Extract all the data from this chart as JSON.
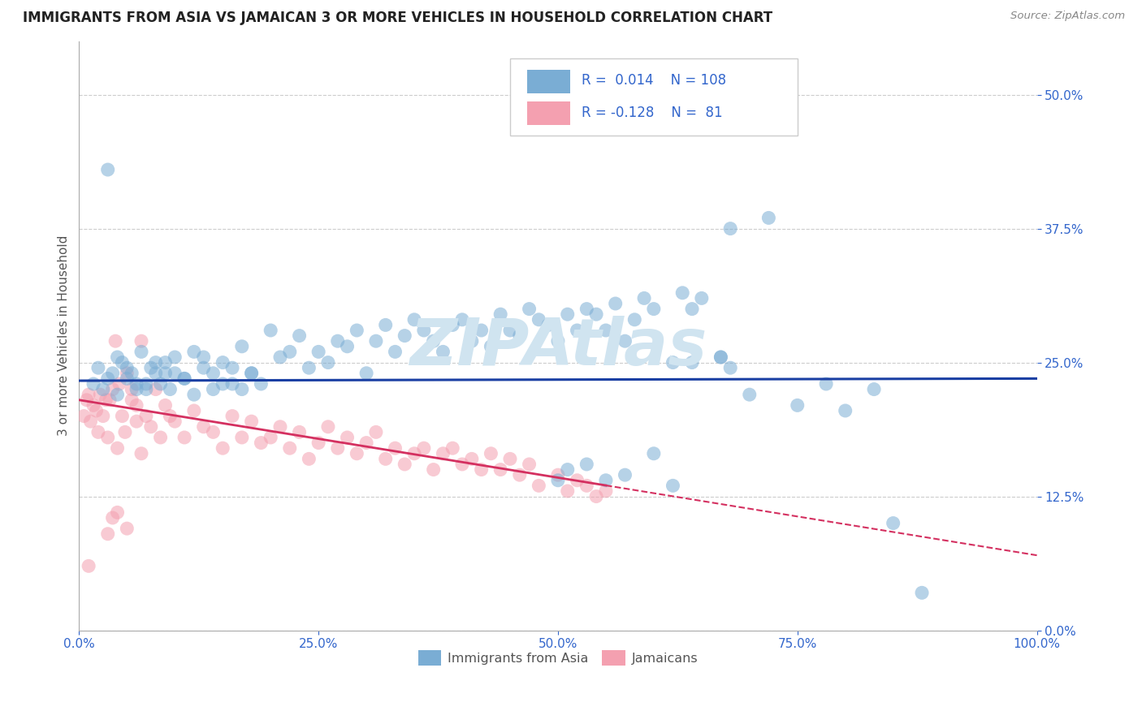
{
  "title": "IMMIGRANTS FROM ASIA VS JAMAICAN 3 OR MORE VEHICLES IN HOUSEHOLD CORRELATION CHART",
  "source_text": "Source: ZipAtlas.com",
  "ylabel": "3 or more Vehicles in Household",
  "legend_labels": [
    "Immigrants from Asia",
    "Jamaicans"
  ],
  "r_values": [
    0.014,
    -0.128
  ],
  "n_values": [
    108,
    81
  ],
  "xlim": [
    0.0,
    100.0
  ],
  "ylim": [
    0.0,
    55.0
  ],
  "x_ticks": [
    0.0,
    25.0,
    50.0,
    75.0,
    100.0
  ],
  "x_tick_labels": [
    "0.0%",
    "25.0%",
    "50.0%",
    "75.0%",
    "100.0%"
  ],
  "y_ticks": [
    0.0,
    12.5,
    25.0,
    37.5,
    50.0
  ],
  "y_tick_labels": [
    "0.0%",
    "12.5%",
    "25.0%",
    "37.5%",
    "50.0%"
  ],
  "grid_color": "#cccccc",
  "background_color": "#ffffff",
  "blue_color": "#7aadd4",
  "pink_color": "#f4a0b0",
  "blue_line_color": "#1a3fa3",
  "pink_line_color": "#d43060",
  "title_color": "#222222",
  "axis_label_color": "#555555",
  "tick_color": "#3366cc",
  "watermark_color": "#d0e4f0",
  "blue_scatter_x": [
    1.5,
    2.0,
    2.5,
    3.0,
    3.5,
    4.0,
    4.5,
    5.0,
    5.5,
    6.0,
    6.5,
    7.0,
    7.5,
    8.0,
    8.5,
    9.0,
    9.5,
    10.0,
    11.0,
    12.0,
    13.0,
    14.0,
    15.0,
    16.0,
    17.0,
    18.0,
    19.0,
    20.0,
    21.0,
    22.0,
    23.0,
    24.0,
    25.0,
    26.0,
    27.0,
    28.0,
    29.0,
    30.0,
    31.0,
    32.0,
    33.0,
    34.0,
    35.0,
    36.0,
    37.0,
    38.0,
    39.0,
    40.0,
    41.0,
    42.0,
    43.0,
    44.0,
    45.0,
    46.0,
    47.0,
    48.0,
    49.0,
    50.0,
    51.0,
    52.0,
    53.0,
    54.0,
    55.0,
    56.0,
    57.0,
    58.0,
    59.0,
    60.0,
    62.0,
    63.0,
    64.0,
    65.0,
    67.0,
    68.0,
    70.0,
    72.0,
    75.0,
    78.0,
    80.0,
    83.0,
    85.0,
    88.0,
    3.0,
    4.0,
    5.0,
    6.0,
    7.0,
    8.0,
    9.0,
    10.0,
    11.0,
    12.0,
    13.0,
    14.0,
    15.0,
    16.0,
    17.0,
    18.0,
    50.0,
    51.0,
    53.0,
    55.0,
    57.0,
    60.0,
    62.0,
    64.0,
    67.0,
    68.0
  ],
  "blue_scatter_y": [
    23.0,
    24.5,
    22.5,
    23.5,
    24.0,
    22.0,
    25.0,
    23.5,
    24.0,
    22.5,
    26.0,
    23.0,
    24.5,
    25.0,
    23.0,
    24.0,
    22.5,
    25.5,
    23.5,
    26.0,
    24.5,
    22.5,
    25.0,
    23.0,
    26.5,
    24.0,
    23.0,
    28.0,
    25.5,
    26.0,
    27.5,
    24.5,
    26.0,
    25.0,
    27.0,
    26.5,
    28.0,
    24.0,
    27.0,
    28.5,
    26.0,
    27.5,
    29.0,
    28.0,
    27.0,
    26.0,
    28.5,
    29.0,
    27.0,
    28.0,
    26.5,
    29.5,
    28.0,
    27.5,
    30.0,
    29.0,
    28.5,
    27.0,
    29.5,
    28.0,
    30.0,
    29.5,
    28.0,
    30.5,
    27.0,
    29.0,
    31.0,
    30.0,
    25.0,
    31.5,
    30.0,
    31.0,
    25.5,
    37.5,
    22.0,
    38.5,
    21.0,
    23.0,
    20.5,
    22.5,
    10.0,
    3.5,
    43.0,
    25.5,
    24.5,
    23.0,
    22.5,
    24.0,
    25.0,
    24.0,
    23.5,
    22.0,
    25.5,
    24.0,
    23.0,
    24.5,
    22.5,
    24.0,
    14.0,
    15.0,
    15.5,
    14.0,
    14.5,
    16.5,
    13.5,
    25.0,
    25.5,
    24.5
  ],
  "pink_scatter_x": [
    0.5,
    0.8,
    1.0,
    1.2,
    1.5,
    1.8,
    2.0,
    2.2,
    2.5,
    2.8,
    3.0,
    3.2,
    3.5,
    3.8,
    4.0,
    4.2,
    4.5,
    4.8,
    5.0,
    5.5,
    6.0,
    6.5,
    7.0,
    7.5,
    8.0,
    8.5,
    9.0,
    9.5,
    10.0,
    11.0,
    12.0,
    13.0,
    14.0,
    15.0,
    16.0,
    17.0,
    18.0,
    19.0,
    20.0,
    21.0,
    22.0,
    23.0,
    24.0,
    25.0,
    26.0,
    27.0,
    28.0,
    29.0,
    30.0,
    31.0,
    32.0,
    33.0,
    34.0,
    35.0,
    36.0,
    37.0,
    38.0,
    39.0,
    40.0,
    41.0,
    42.0,
    43.0,
    44.0,
    45.0,
    46.0,
    47.0,
    48.0,
    50.0,
    51.0,
    52.0,
    53.0,
    54.0,
    55.0,
    3.0,
    3.5,
    4.0,
    5.0,
    5.5,
    6.0,
    6.5,
    1.0
  ],
  "pink_scatter_y": [
    20.0,
    21.5,
    22.0,
    19.5,
    21.0,
    20.5,
    18.5,
    22.0,
    20.0,
    21.5,
    18.0,
    21.5,
    22.5,
    27.0,
    17.0,
    23.0,
    20.0,
    18.5,
    24.0,
    22.5,
    21.0,
    27.0,
    20.0,
    19.0,
    22.5,
    18.0,
    21.0,
    20.0,
    19.5,
    18.0,
    20.5,
    19.0,
    18.5,
    17.0,
    20.0,
    18.0,
    19.5,
    17.5,
    18.0,
    19.0,
    17.0,
    18.5,
    16.0,
    17.5,
    19.0,
    17.0,
    18.0,
    16.5,
    17.5,
    18.5,
    16.0,
    17.0,
    15.5,
    16.5,
    17.0,
    15.0,
    16.5,
    17.0,
    15.5,
    16.0,
    15.0,
    16.5,
    15.0,
    16.0,
    14.5,
    15.5,
    13.5,
    14.5,
    13.0,
    14.0,
    13.5,
    12.5,
    13.0,
    9.0,
    10.5,
    11.0,
    9.5,
    21.5,
    19.5,
    16.5,
    6.0
  ]
}
